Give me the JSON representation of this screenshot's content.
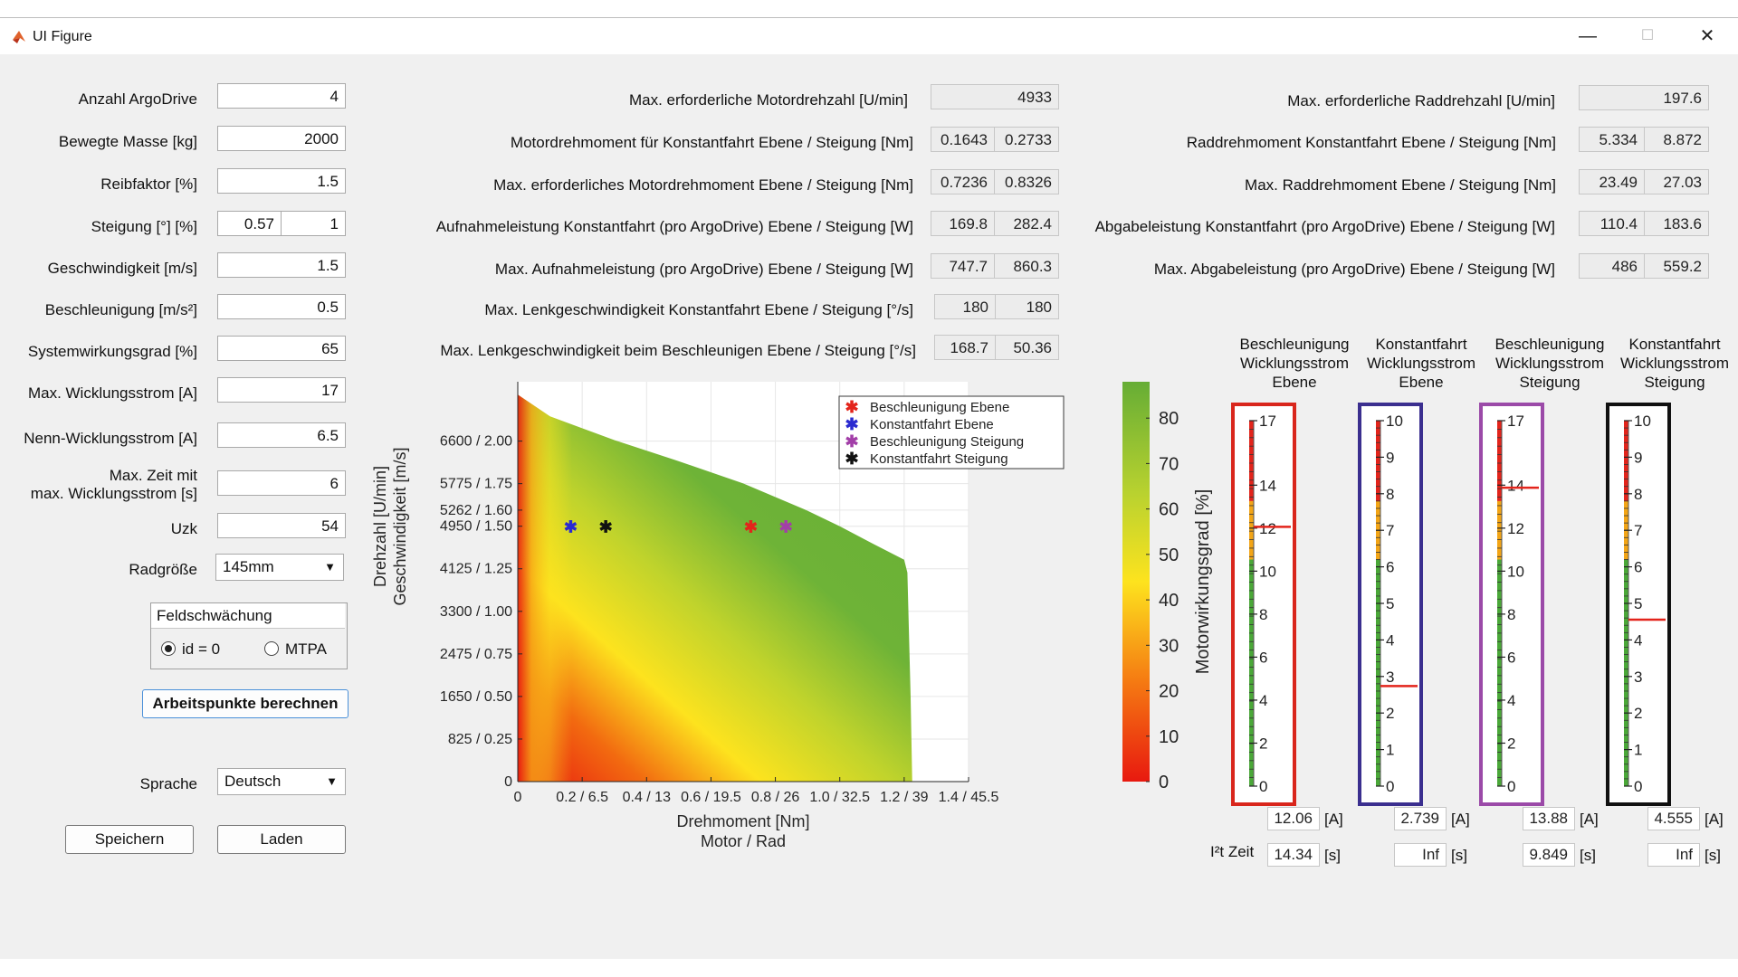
{
  "window": {
    "title": "UI Figure",
    "minimize": "—",
    "maximize": "☐",
    "close": "✕"
  },
  "inputs": [
    {
      "label": "Anzahl ArgoDrive",
      "value": "4"
    },
    {
      "label": "Bewegte Masse [kg]",
      "value": "2000"
    },
    {
      "label": "Reibfaktor [%]",
      "value": "1.5"
    },
    {
      "label": "Steigung [°] [%]",
      "value": "0.57",
      "value2": "1"
    },
    {
      "label": "Geschwindigkeit [m/s]",
      "value": "1.5"
    },
    {
      "label": "Beschleunigung [m/s²]",
      "value": "0.5"
    },
    {
      "label": "Systemwirkungsgrad [%]",
      "value": "65"
    },
    {
      "label": "Max. Wicklungsstrom [A]",
      "value": "17"
    },
    {
      "label": "Nenn-Wicklungsstrom [A]",
      "value": "6.5"
    },
    {
      "label_line1": "Max. Zeit mit",
      "label_line2": "max. Wicklungsstrom [s]",
      "value": "6"
    },
    {
      "label": "Uzk",
      "value": "54"
    }
  ],
  "radgroesse": {
    "label": "Radgröße",
    "value": "145mm",
    "arrow": "▼"
  },
  "feldschwaechung": {
    "title": "Feldschwächung",
    "opt1": "id = 0",
    "opt2": "MTPA",
    "selected": "id = 0"
  },
  "compute_button": "Arbeitspunkte berechnen",
  "sprache": {
    "label": "Sprache",
    "value": "Deutsch",
    "arrow": "▼"
  },
  "save_button": "Speichern",
  "load_button": "Laden",
  "motor_results": [
    {
      "label": "Max. erforderliche Motordrehzahl [U/min]",
      "v1": "4933"
    },
    {
      "label": "Motordrehmoment für Konstantfahrt Ebene / Steigung [Nm]",
      "v1": "0.1643",
      "v2": "0.2733"
    },
    {
      "label": "Max. erforderliches Motordrehmoment Ebene / Steigung [Nm]",
      "v1": "0.7236",
      "v2": "0.8326"
    },
    {
      "label": "Aufnahmeleistung Konstantfahrt (pro ArgoDrive) Ebene / Steigung [W]",
      "v1": "169.8",
      "v2": "282.4"
    },
    {
      "label": "Max. Aufnahmeleistung (pro ArgoDrive) Ebene / Steigung [W]",
      "v1": "747.7",
      "v2": "860.3"
    },
    {
      "label": "Max. Lenkgeschwindigkeit Konstantfahrt Ebene / Steigung [°/s]",
      "v1": "180",
      "v2": "180"
    },
    {
      "label": "Max. Lenkgeschwindigkeit beim Beschleunigen Ebene / Steigung [°/s]",
      "v1": "168.7",
      "v2": "50.36"
    }
  ],
  "wheel_results": [
    {
      "label": "Max. erforderliche Raddrehzahl [U/min]",
      "v1": "197.6"
    },
    {
      "label": "Raddrehmoment Konstantfahrt Ebene / Steigung [Nm]",
      "v1": "5.334",
      "v2": "8.872"
    },
    {
      "label": "Max. Raddrehmoment Ebene / Steigung [Nm]",
      "v1": "23.49",
      "v2": "27.03"
    },
    {
      "label": "Abgabeleistung Konstantfahrt (pro ArgoDrive) Ebene / Steigung [W]",
      "v1": "110.4",
      "v2": "183.6"
    },
    {
      "label": "Max. Abgabeleistung (pro ArgoDrive) Ebene / Steigung [W]",
      "v1": "486",
      "v2": "559.2"
    }
  ],
  "chart_data": {
    "type": "heatmap",
    "xlabel_line1": "Drehmoment [Nm]",
    "xlabel_line2": "Motor / Rad",
    "ylabel_line1": "Drehzahl [U/min]",
    "ylabel_line2": "Geschwindigkeit [m/s]",
    "xticks": [
      {
        "v": 0,
        "label": "0"
      },
      {
        "v": 0.2,
        "label": "0.2 / 6.5"
      },
      {
        "v": 0.4,
        "label": "0.4 / 13"
      },
      {
        "v": 0.6,
        "label": "0.6 / 19.5"
      },
      {
        "v": 0.8,
        "label": "0.8 / 26"
      },
      {
        "v": 1.0,
        "label": "1.0 / 32.5"
      },
      {
        "v": 1.2,
        "label": "1.2 / 39"
      },
      {
        "v": 1.4,
        "label": "1.4 / 45.5"
      }
    ],
    "yticks": [
      {
        "v": 0,
        "label": "0"
      },
      {
        "v": 825,
        "label": "825 / 0.25"
      },
      {
        "v": 1650,
        "label": "1650 / 0.50"
      },
      {
        "v": 2475,
        "label": "2475 / 0.75"
      },
      {
        "v": 3300,
        "label": "3300 / 1.00"
      },
      {
        "v": 4125,
        "label": "4125 / 1.25"
      },
      {
        "v": 4950,
        "label": "4950 / 1.50"
      },
      {
        "v": 5262,
        "label": "5262 / 1.60"
      },
      {
        "v": 5775,
        "label": "5775 / 1.75"
      },
      {
        "v": 6600,
        "label": "6600 / 2.00"
      }
    ],
    "xlim": [
      0,
      1.4
    ],
    "ylim": [
      0,
      7750
    ],
    "boundary": [
      [
        0,
        7500
      ],
      [
        0.1,
        7080
      ],
      [
        0.3,
        6620
      ],
      [
        0.5,
        6210
      ],
      [
        0.7,
        5780
      ],
      [
        0.9,
        5250
      ],
      [
        1.0,
        4950
      ],
      [
        1.1,
        4620
      ],
      [
        1.2,
        4300
      ],
      [
        1.21,
        4050
      ],
      [
        1.22,
        1650
      ],
      [
        1.225,
        0
      ]
    ],
    "points": [
      {
        "name": "Beschleunigung Ebene",
        "x": 0.7236,
        "y": 4933,
        "color": "#e3241b"
      },
      {
        "name": "Konstantfahrt Ebene",
        "x": 0.1643,
        "y": 4933,
        "color": "#2a2ad0"
      },
      {
        "name": "Beschleunigung Steigung",
        "x": 0.8326,
        "y": 4933,
        "color": "#a23ea8"
      },
      {
        "name": "Konstantfahrt Steigung",
        "x": 0.2733,
        "y": 4933,
        "color": "#111111"
      }
    ],
    "colorbar": {
      "label": "Motorwirkungsgrad [%]",
      "min": 0,
      "max": 88,
      "ticks": [
        0,
        10,
        20,
        30,
        40,
        50,
        60,
        70,
        80
      ]
    }
  },
  "gauges": [
    {
      "title": [
        "Beschleunigung",
        "Wicklungsstrom",
        "Ebene"
      ],
      "frame": "#d9261c",
      "max": 17,
      "ticks": [
        0,
        2,
        4,
        6,
        8,
        10,
        12,
        14,
        17
      ],
      "value": 12.06,
      "value_text": "12.06",
      "unit": "[A]",
      "i2t": "14.34",
      "i2t_unit": "[s]"
    },
    {
      "title": [
        "Konstantfahrt",
        "Wicklungsstrom",
        "Ebene"
      ],
      "frame": "#3b2f8f",
      "max": 10,
      "ticks": [
        0,
        1,
        2,
        3,
        4,
        5,
        6,
        7,
        8,
        9,
        10
      ],
      "value": 2.739,
      "value_text": "2.739",
      "unit": "[A]",
      "i2t": "Inf",
      "i2t_unit": "[s]"
    },
    {
      "title": [
        "Beschleunigung",
        "Wicklungsstrom",
        "Steigung"
      ],
      "frame": "#9b4aa8",
      "max": 17,
      "ticks": [
        0,
        2,
        4,
        6,
        8,
        10,
        12,
        14,
        17
      ],
      "value": 13.88,
      "value_text": "13.88",
      "unit": "[A]",
      "i2t": "9.849",
      "i2t_unit": "[s]"
    },
    {
      "title": [
        "Konstantfahrt",
        "Wicklungsstrom",
        "Steigung"
      ],
      "frame": "#111111",
      "max": 10,
      "ticks": [
        0,
        1,
        2,
        3,
        4,
        5,
        6,
        7,
        8,
        9,
        10
      ],
      "value": 4.555,
      "value_text": "4.555",
      "unit": "[A]",
      "i2t": "Inf",
      "i2t_unit": "[s]"
    }
  ],
  "i2t_label": "I²t Zeit"
}
